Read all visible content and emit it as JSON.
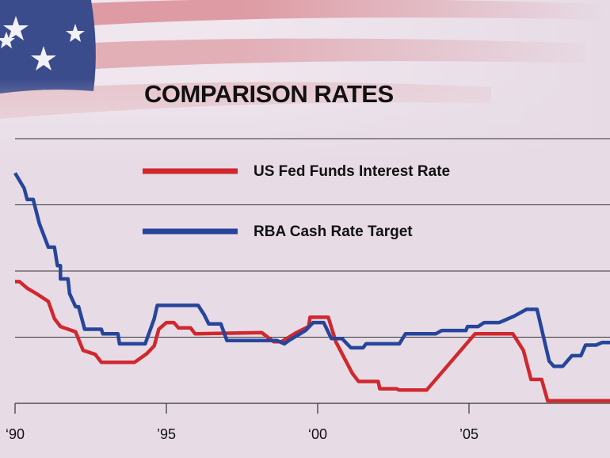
{
  "chart_data": {
    "type": "line",
    "title": "COMPARISON RATES",
    "xlim": [
      1990,
      2009.66
    ],
    "xticks": [
      {
        "value": 1990,
        "label": "‘90"
      },
      {
        "value": 1995,
        "label": "’95"
      },
      {
        "value": 2000,
        "label": "‘00"
      },
      {
        "value": 2005,
        "label": "’05"
      }
    ],
    "ylim": [
      0,
      20
    ],
    "yticks": [
      0,
      5,
      10,
      15,
      20
    ],
    "grid": true,
    "series": [
      {
        "name": "US Fed Funds Interest Rate",
        "color": "#d0282e",
        "x": [
          1990,
          1990.15,
          1990.4,
          1990.7,
          1991.1,
          1991.3,
          1991.5,
          1992,
          1992.25,
          1992.65,
          1992.85,
          1993.95,
          1994.35,
          1994.6,
          1994.75,
          1995,
          1995.25,
          1995.4,
          1995.8,
          1995.95,
          1998.15,
          1998.55,
          1998.8,
          1999.3,
          1999.7,
          1999.75,
          2000.35,
          2000.6,
          2001.15,
          2001.35,
          2002,
          2002.05,
          2002.6,
          2002.7,
          2003.6,
          2005.2,
          2006.45,
          2006.8,
          2007.05,
          2007.4,
          2007.6,
          2009.66
        ],
        "values": [
          9.2,
          9.2,
          8.7,
          8.3,
          7.7,
          6.4,
          5.8,
          5.4,
          4.0,
          3.7,
          3.1,
          3.1,
          3.75,
          4.35,
          5.6,
          6.1,
          6.1,
          5.7,
          5.7,
          5.25,
          5.35,
          4.65,
          4.65,
          5.35,
          5.8,
          6.5,
          6.5,
          4.65,
          2.25,
          1.65,
          1.65,
          1.1,
          1.1,
          1.0,
          1.0,
          5.25,
          5.25,
          4.0,
          1.8,
          1.8,
          0.2,
          0.2
        ]
      },
      {
        "name": "RBA Cash Rate Target",
        "color": "#26459b",
        "x": [
          1990,
          1990.3,
          1990.4,
          1990.6,
          1990.8,
          1991.1,
          1991.3,
          1991.4,
          1991.5,
          1991.5,
          1991.75,
          1991.8,
          1992,
          1992.1,
          1992.3,
          1992.85,
          1992.9,
          1993.4,
          1993.45,
          1994.3,
          1994.6,
          1994.7,
          1996.05,
          1996.25,
          1996.4,
          1996.8,
          1997,
          1998.65,
          1998.9,
          1999.05,
          1999.6,
          1999.85,
          2000.2,
          2000.45,
          2000.8,
          2001.1,
          2001.5,
          2001.6,
          2002.7,
          2002.9,
          2003.9,
          2004.1,
          2004.9,
          2004.95,
          2005.3,
          2005.5,
          2006,
          2006.5,
          2006.9,
          2007.25,
          2007.65,
          2007.8,
          2008.1,
          2008.4,
          2008.7,
          2008.85,
          2009.2,
          2009.4,
          2009.66
        ],
        "values": [
          17.4,
          16.25,
          15.4,
          15.4,
          13.6,
          11.8,
          11.8,
          10.4,
          10.4,
          9.4,
          9.4,
          8.3,
          7.3,
          7.3,
          5.6,
          5.6,
          5.25,
          5.25,
          4.5,
          4.5,
          6.4,
          7.4,
          7.4,
          6.7,
          6.0,
          6.0,
          4.75,
          4.75,
          4.5,
          4.75,
          5.5,
          6.1,
          6.1,
          4.9,
          4.9,
          4.2,
          4.2,
          4.5,
          4.5,
          5.25,
          5.25,
          5.5,
          5.5,
          5.8,
          5.8,
          6.1,
          6.1,
          6.6,
          7.1,
          7.1,
          3.2,
          2.8,
          2.8,
          3.6,
          3.6,
          4.4,
          4.4,
          4.6,
          4.6
        ]
      }
    ]
  }
}
